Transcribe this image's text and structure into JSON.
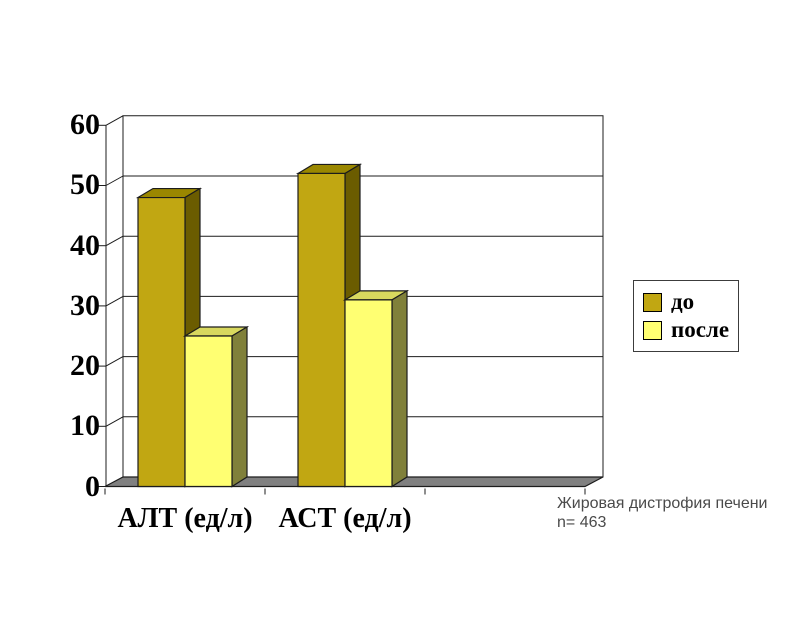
{
  "chart_data": {
    "type": "bar",
    "variant": "3d-column",
    "title": "",
    "categories": [
      "АЛТ (ед/л)",
      "АСТ (ед/л)",
      ""
    ],
    "series": [
      {
        "name": "до",
        "values": [
          48,
          52,
          null
        ],
        "color": "#C1A712",
        "top_color": "#9A8700",
        "side_color": "#6B5C00"
      },
      {
        "name": "после",
        "values": [
          25,
          31,
          null
        ],
        "color": "#FFFF72",
        "top_color": "#D8D85E",
        "side_color": "#80803A"
      }
    ],
    "ylim": [
      0,
      60
    ],
    "ytick_step": 10,
    "yticks": [
      "0",
      "10",
      "20",
      "30",
      "40",
      "50",
      "60"
    ],
    "grid": true,
    "legend_position": "right",
    "colors": {
      "floor": "#808080",
      "wall": "#FFFFFF",
      "line": "#1c1c1c"
    }
  },
  "legend": {
    "items": [
      "до",
      "после"
    ]
  },
  "caption": {
    "line1": "Жировая дистрофия печени",
    "line2": "n= 463"
  }
}
